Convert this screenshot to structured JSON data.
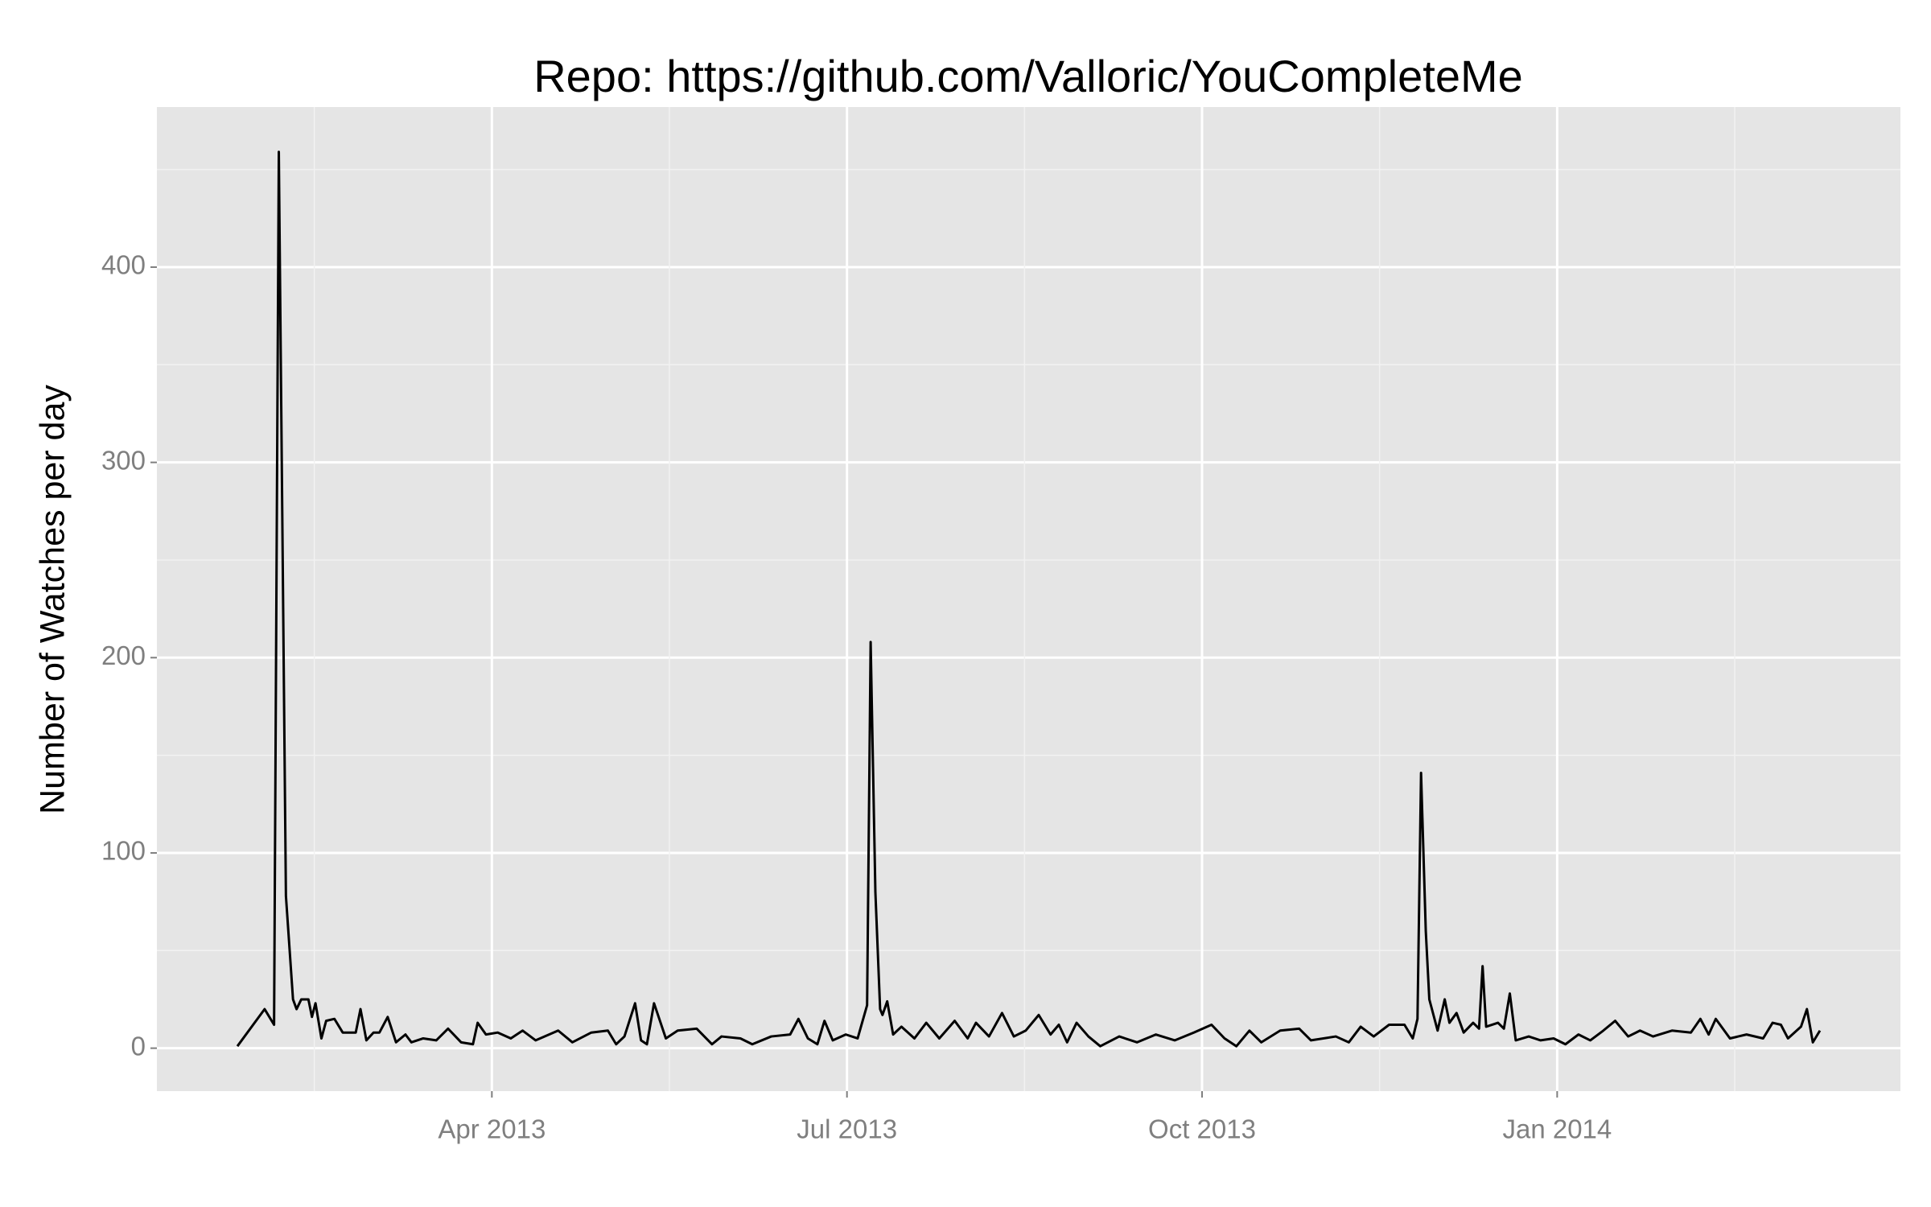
{
  "chart_data": {
    "type": "line",
    "title": "Repo: https://github.com/Valloric/YouCompleteMe",
    "y_label": "Number of Watches per day",
    "x": [
      0.85,
      1.08,
      1.16,
      1.2,
      1.26,
      1.32,
      1.35,
      1.39,
      1.45,
      1.48,
      1.51,
      1.56,
      1.6,
      1.67,
      1.74,
      1.85,
      1.89,
      1.94,
      2.0,
      2.05,
      2.12,
      2.19,
      2.27,
      2.32,
      2.42,
      2.53,
      2.63,
      2.74,
      2.84,
      2.88,
      2.95,
      3.05,
      3.16,
      3.26,
      3.37,
      3.56,
      3.68,
      3.84,
      3.98,
      4.05,
      4.12,
      4.21,
      4.26,
      4.31,
      4.37,
      4.47,
      4.57,
      4.73,
      4.86,
      4.94,
      5.1,
      5.2,
      5.36,
      5.52,
      5.59,
      5.67,
      5.75,
      5.81,
      5.88,
      5.99,
      6.09,
      6.17,
      6.2,
      6.24,
      6.28,
      6.3,
      6.34,
      6.39,
      6.46,
      6.57,
      6.67,
      6.78,
      6.91,
      7.02,
      7.09,
      7.2,
      7.31,
      7.41,
      7.51,
      7.62,
      7.72,
      7.79,
      7.86,
      7.94,
      8.04,
      8.14,
      8.3,
      8.45,
      8.61,
      8.77,
      8.93,
      9.08,
      9.19,
      9.29,
      9.4,
      9.5,
      9.66,
      9.82,
      9.92,
      10.13,
      10.24,
      10.34,
      10.45,
      10.58,
      10.71,
      10.78,
      10.82,
      10.85,
      10.89,
      10.92,
      10.99,
      11.05,
      11.09,
      11.15,
      11.21,
      11.29,
      11.34,
      11.37,
      11.4,
      11.5,
      11.55,
      11.6,
      11.65,
      11.76,
      11.86,
      11.97,
      12.07,
      12.18,
      12.28,
      12.39,
      12.49,
      12.6,
      12.7,
      12.81,
      12.97,
      13.13,
      13.21,
      13.28,
      13.34,
      13.46,
      13.6,
      13.74,
      13.82,
      13.89,
      13.95,
      14.06,
      14.11,
      14.16,
      14.22
    ],
    "values": [
      1,
      20,
      12,
      459,
      78,
      25,
      20,
      25,
      25,
      16,
      23,
      5,
      14,
      15,
      8,
      8,
      20,
      4,
      8,
      8,
      16,
      3,
      7,
      3,
      5,
      4,
      10,
      3,
      2,
      13,
      7,
      8,
      5,
      9,
      4,
      9,
      3,
      8,
      9,
      2,
      6,
      23,
      4,
      2,
      23,
      5,
      9,
      10,
      2,
      6,
      5,
      2,
      6,
      7,
      15,
      5,
      2,
      14,
      4,
      7,
      5,
      22,
      208,
      80,
      20,
      17,
      24,
      7,
      11,
      5,
      13,
      5,
      14,
      5,
      13,
      6,
      18,
      6,
      9,
      17,
      7,
      12,
      3,
      13,
      6,
      1,
      6,
      3,
      7,
      4,
      8,
      12,
      5,
      1,
      9,
      3,
      9,
      10,
      4,
      6,
      3,
      11,
      6,
      12,
      12,
      5,
      15,
      141,
      60,
      25,
      9,
      25,
      13,
      18,
      8,
      13,
      10,
      42,
      11,
      13,
      10,
      28,
      4,
      6,
      4,
      5,
      2,
      7,
      4,
      9,
      14,
      6,
      9,
      6,
      9,
      8,
      15,
      7,
      15,
      5,
      7,
      5,
      13,
      12,
      5,
      11,
      20,
      3,
      9
    ],
    "color": "#000000",
    "xlim": [
      0.17,
      14.9
    ],
    "xticks": [
      {
        "value": 3,
        "label": "Apr 2013"
      },
      {
        "value": 6,
        "label": "Jul 2013"
      },
      {
        "value": 9,
        "label": "Oct 2013"
      },
      {
        "value": 12,
        "label": "Jan 2014"
      }
    ],
    "ylim": [
      -22,
      482
    ],
    "yticks": [
      0,
      100,
      200,
      300,
      400
    ],
    "grid": true
  }
}
